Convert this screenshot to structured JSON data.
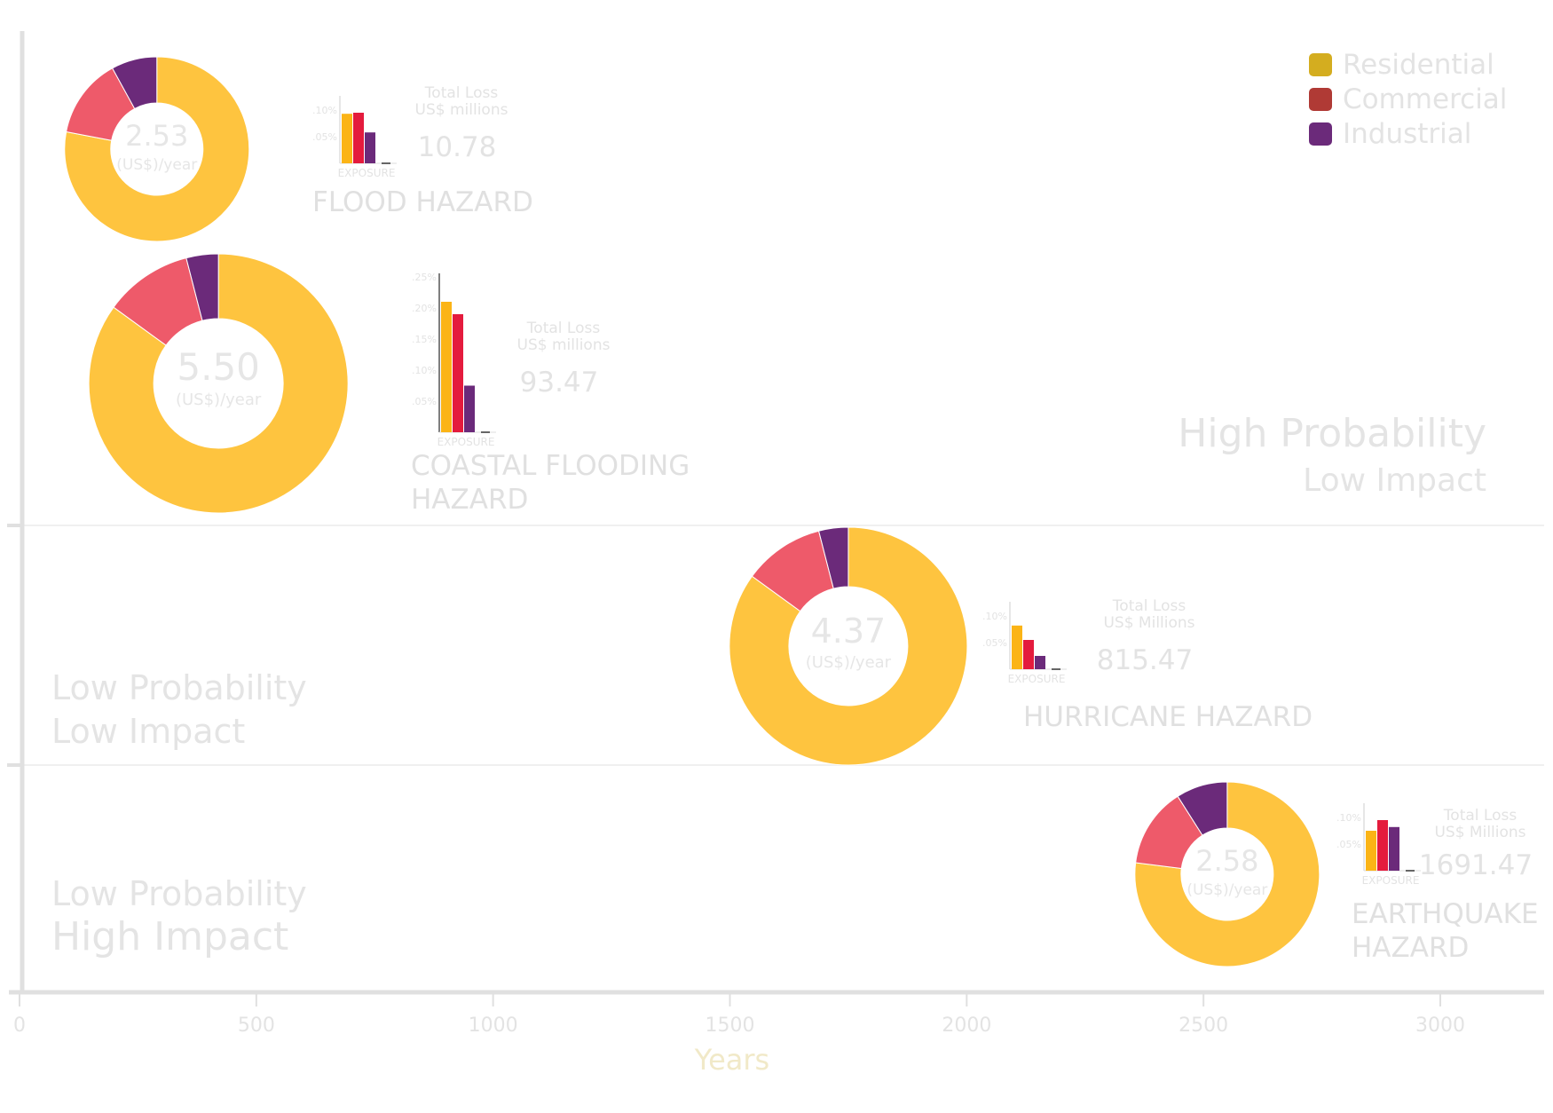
{
  "chart_data": {
    "type": "scatter",
    "xlabel": "Years",
    "ylabel": "",
    "xlim": [
      0,
      3250
    ],
    "x_ticks": [
      "0",
      "500",
      "1000",
      "1500",
      "2000",
      "2500",
      "3000"
    ],
    "legend": {
      "placement": "top-right",
      "entries": [
        {
          "name": "Residential",
          "color": "#d4ad1f"
        },
        {
          "name": "Commercial",
          "color": "#b03a35"
        },
        {
          "name": "Industrial",
          "color": "#6b2a7a"
        }
      ]
    },
    "zones": [
      {
        "line1": "High Probability",
        "line2": "Low Impact"
      },
      {
        "line1": "Low Probability",
        "line2": "Low Impact"
      },
      {
        "line1": "Low Probability",
        "line2": "High Impact"
      }
    ],
    "series_colors": {
      "residential": "#fec43f",
      "commercial": "#ee5a6a",
      "industrial": "#6b2a7a"
    },
    "bar_colors": {
      "residential": "#fbb416",
      "commercial": "#e41b3d",
      "industrial": "#6b2a7a"
    },
    "hazards": [
      {
        "name_lines": [
          "FLOOD HAZARD"
        ],
        "return_period_years": 290,
        "value": "2.53",
        "unit": "(US$)/year",
        "shares": {
          "residential": 0.78,
          "commercial": 0.14,
          "industrial": 0.08
        },
        "exposure_label": "EXPOSURE",
        "exposure_ticks": [
          ".10%",
          ".05%"
        ],
        "exposure": {
          "residential": 0.093,
          "commercial": 0.095,
          "industrial": 0.058
        },
        "exposure_max": 0.12,
        "total_loss_line1": "Total Loss",
        "total_loss_line2": "US$ millions",
        "total_loss": "10.78"
      },
      {
        "name_lines": [
          "COASTAL FLOODING",
          "HAZARD"
        ],
        "return_period_years": 420,
        "value": "5.50",
        "unit": "(US$)/year",
        "shares": {
          "residential": 0.85,
          "commercial": 0.11,
          "industrial": 0.04
        },
        "exposure_label": "EXPOSURE",
        "exposure_ticks": [
          ".25%",
          ".20%",
          ".15%",
          ".10%",
          ".05%"
        ],
        "exposure": {
          "residential": 0.21,
          "commercial": 0.19,
          "industrial": 0.075
        },
        "exposure_max": 0.25,
        "total_loss_line1": "Total Loss",
        "total_loss_line2": "US$ millions",
        "total_loss": "93.47"
      },
      {
        "name_lines": [
          "HURRICANE HAZARD"
        ],
        "return_period_years": 1750,
        "value": "4.37",
        "unit": "(US$)/year",
        "shares": {
          "residential": 0.85,
          "commercial": 0.11,
          "industrial": 0.04
        },
        "exposure_label": "EXPOSURE",
        "exposure_ticks": [
          ".10%",
          ".05%"
        ],
        "exposure": {
          "residential": 0.082,
          "commercial": 0.055,
          "industrial": 0.025
        },
        "exposure_max": 0.12,
        "total_loss_line1": "Total Loss",
        "total_loss_line2": "US$ Millions",
        "total_loss": "815.47"
      },
      {
        "name_lines": [
          "EARTHQUAKE",
          "HAZARD"
        ],
        "return_period_years": 2550,
        "value": "2.58",
        "unit": "(US$)/year",
        "shares": {
          "residential": 0.77,
          "commercial": 0.14,
          "industrial": 0.09
        },
        "exposure_label": "EXPOSURE",
        "exposure_ticks": [
          ".10%",
          ".05%"
        ],
        "exposure": {
          "residential": 0.075,
          "commercial": 0.095,
          "industrial": 0.082
        },
        "exposure_max": 0.12,
        "total_loss_line1": "Total Loss",
        "total_loss_line2": "US$ Millions",
        "total_loss": "1691.47"
      }
    ]
  }
}
